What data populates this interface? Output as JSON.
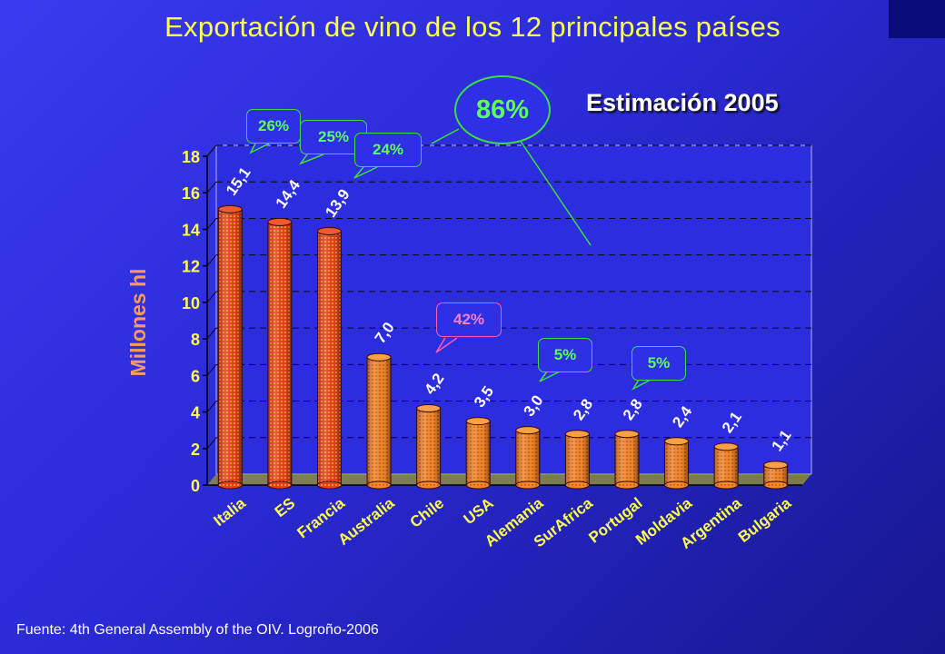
{
  "title": "Exportación de vino de los 12 principales países",
  "subtitle": "Estimación 2005",
  "source": "Fuente: 4th General Assembly of the OIV. Logroño-2006",
  "callouts": {
    "total": "86%",
    "italia": "26%",
    "es": "25%",
    "francia": "24%",
    "chile": "42%",
    "alemania": "5%",
    "portugal": "5%"
  },
  "colors": {
    "title": "#ffff4d",
    "bar_top3": "#e83a1c",
    "bar_rest": "#f28a2c",
    "callout_green": "#3ce03c",
    "callout_pink": "#ff5fb0"
  },
  "chart_data": {
    "type": "bar",
    "title": "Exportación de vino de los 12 principales países",
    "subtitle": "Estimación 2005",
    "ylabel": "Millones hl",
    "xlabel": "",
    "categories": [
      "Italia",
      "ES",
      "Francia",
      "Australia",
      "Chile",
      "USA",
      "Alemania",
      "SurAfrica",
      "Portugal",
      "Moldavia",
      "Argentina",
      "Bulgaria"
    ],
    "values": [
      15.1,
      14.4,
      13.9,
      7.0,
      4.2,
      3.5,
      3.0,
      2.8,
      2.8,
      2.4,
      2.1,
      1.1
    ],
    "value_labels": [
      "15,1",
      "14,4",
      "13,9",
      "7,0",
      "4,2",
      "3,5",
      "3,0",
      "2,8",
      "2,8",
      "2,4",
      "2,1",
      "1,1"
    ],
    "ylim": [
      0,
      18
    ],
    "yticks": [
      "0",
      "2",
      "4",
      "6",
      "8",
      "10",
      "12",
      "14",
      "16",
      "18"
    ],
    "grid": true
  }
}
